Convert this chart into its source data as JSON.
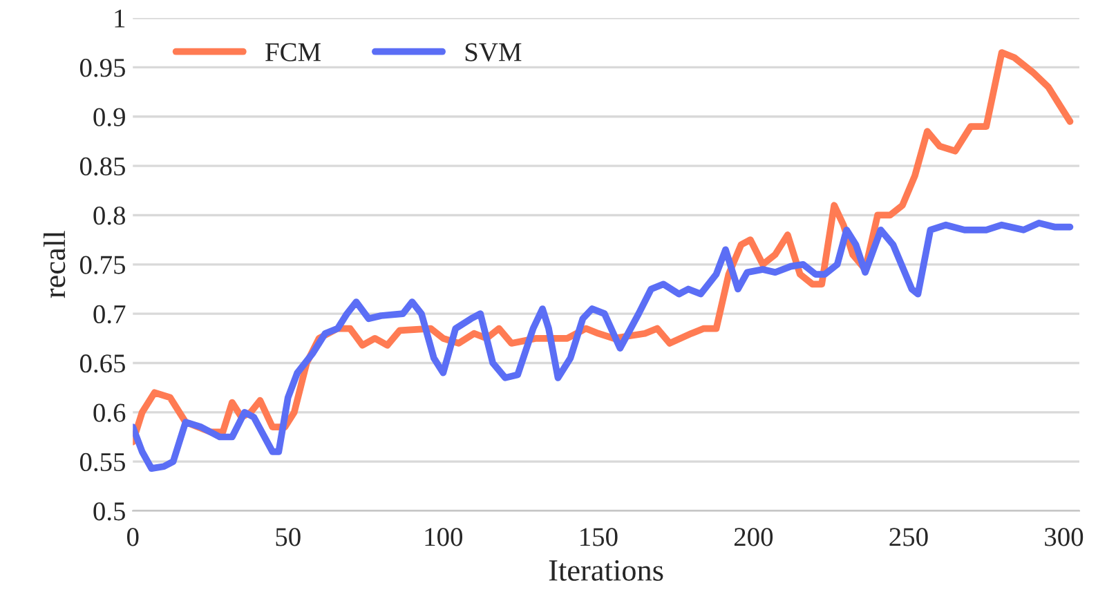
{
  "chart_data": {
    "type": "line",
    "xlabel": "Iterations",
    "ylabel": "recall",
    "xlim": [
      0,
      305
    ],
    "xticks": [
      0,
      50,
      100,
      150,
      200,
      250,
      300
    ],
    "ylim": [
      0.5,
      1
    ],
    "yticks": [
      {
        "value": 0.5,
        "label": "0.5"
      },
      {
        "value": 0.55,
        "label": "0.55"
      },
      {
        "value": 0.6,
        "label": "0.6"
      },
      {
        "value": 0.65,
        "label": "0.65"
      },
      {
        "value": 0.7,
        "label": "0.7"
      },
      {
        "value": 0.75,
        "label": "0.75"
      },
      {
        "value": 0.8,
        "label": "0.8"
      },
      {
        "value": 0.85,
        "label": "0.85"
      },
      {
        "value": 0.9,
        "label": "0.9"
      },
      {
        "value": 0.95,
        "label": "0.95"
      },
      {
        "value": 1,
        "label": "1"
      }
    ],
    "grid": "y",
    "legend": "top left",
    "line_style": "solid",
    "marker": "none",
    "series": [
      {
        "name": "FCM",
        "color": "#ff7b53",
        "x": [
          0,
          3,
          7,
          12,
          17,
          25,
          29,
          32,
          35,
          38,
          41,
          45,
          49,
          52,
          56,
          60,
          66,
          70,
          74,
          78,
          82,
          86,
          96,
          100,
          105,
          110,
          114,
          118,
          122,
          130,
          140,
          146,
          150,
          155,
          165,
          169,
          173,
          180,
          184,
          188,
          192,
          196,
          199,
          203,
          207,
          211,
          215,
          219,
          222,
          226,
          229,
          232,
          236,
          240,
          244,
          248,
          252,
          256,
          260,
          265,
          270,
          275,
          280,
          284,
          290,
          295,
          298,
          302
        ],
        "values": [
          0.57,
          0.6,
          0.62,
          0.615,
          0.59,
          0.58,
          0.58,
          0.61,
          0.595,
          0.6,
          0.612,
          0.585,
          0.585,
          0.6,
          0.65,
          0.675,
          0.685,
          0.685,
          0.668,
          0.675,
          0.668,
          0.683,
          0.685,
          0.675,
          0.67,
          0.68,
          0.675,
          0.685,
          0.67,
          0.675,
          0.675,
          0.685,
          0.68,
          0.675,
          0.68,
          0.685,
          0.67,
          0.68,
          0.685,
          0.685,
          0.74,
          0.77,
          0.775,
          0.75,
          0.76,
          0.78,
          0.74,
          0.73,
          0.73,
          0.81,
          0.79,
          0.76,
          0.745,
          0.8,
          0.8,
          0.81,
          0.84,
          0.885,
          0.87,
          0.865,
          0.89,
          0.89,
          0.965,
          0.96,
          0.945,
          0.93,
          0.915,
          0.895
        ]
      },
      {
        "name": "SVM",
        "color": "#5b6ef5",
        "x": [
          0,
          3,
          6,
          10,
          13,
          17,
          22,
          28,
          32,
          36,
          39,
          45,
          47,
          50,
          53,
          58,
          62,
          66,
          69,
          72,
          76,
          80,
          87,
          90,
          93,
          97,
          100,
          104,
          109,
          112,
          116,
          120,
          124,
          129,
          132,
          134,
          137,
          141,
          145,
          148,
          152,
          157,
          163,
          167,
          171,
          176,
          179,
          183,
          188,
          191,
          195,
          198,
          203,
          207,
          212,
          216,
          220,
          223,
          227,
          230,
          233,
          236,
          241,
          245,
          251,
          253,
          257,
          262,
          268,
          275,
          280,
          287,
          292,
          297,
          302
        ],
        "values": [
          0.585,
          0.56,
          0.543,
          0.545,
          0.55,
          0.59,
          0.585,
          0.575,
          0.575,
          0.6,
          0.595,
          0.56,
          0.56,
          0.615,
          0.64,
          0.66,
          0.68,
          0.685,
          0.7,
          0.712,
          0.695,
          0.698,
          0.7,
          0.712,
          0.7,
          0.655,
          0.64,
          0.685,
          0.695,
          0.7,
          0.65,
          0.635,
          0.638,
          0.685,
          0.705,
          0.685,
          0.635,
          0.655,
          0.695,
          0.705,
          0.7,
          0.665,
          0.7,
          0.725,
          0.73,
          0.72,
          0.725,
          0.72,
          0.74,
          0.765,
          0.725,
          0.742,
          0.745,
          0.742,
          0.748,
          0.75,
          0.74,
          0.74,
          0.75,
          0.785,
          0.77,
          0.742,
          0.785,
          0.77,
          0.725,
          0.72,
          0.785,
          0.79,
          0.785,
          0.785,
          0.79,
          0.785,
          0.792,
          0.788,
          0.788
        ]
      }
    ]
  }
}
